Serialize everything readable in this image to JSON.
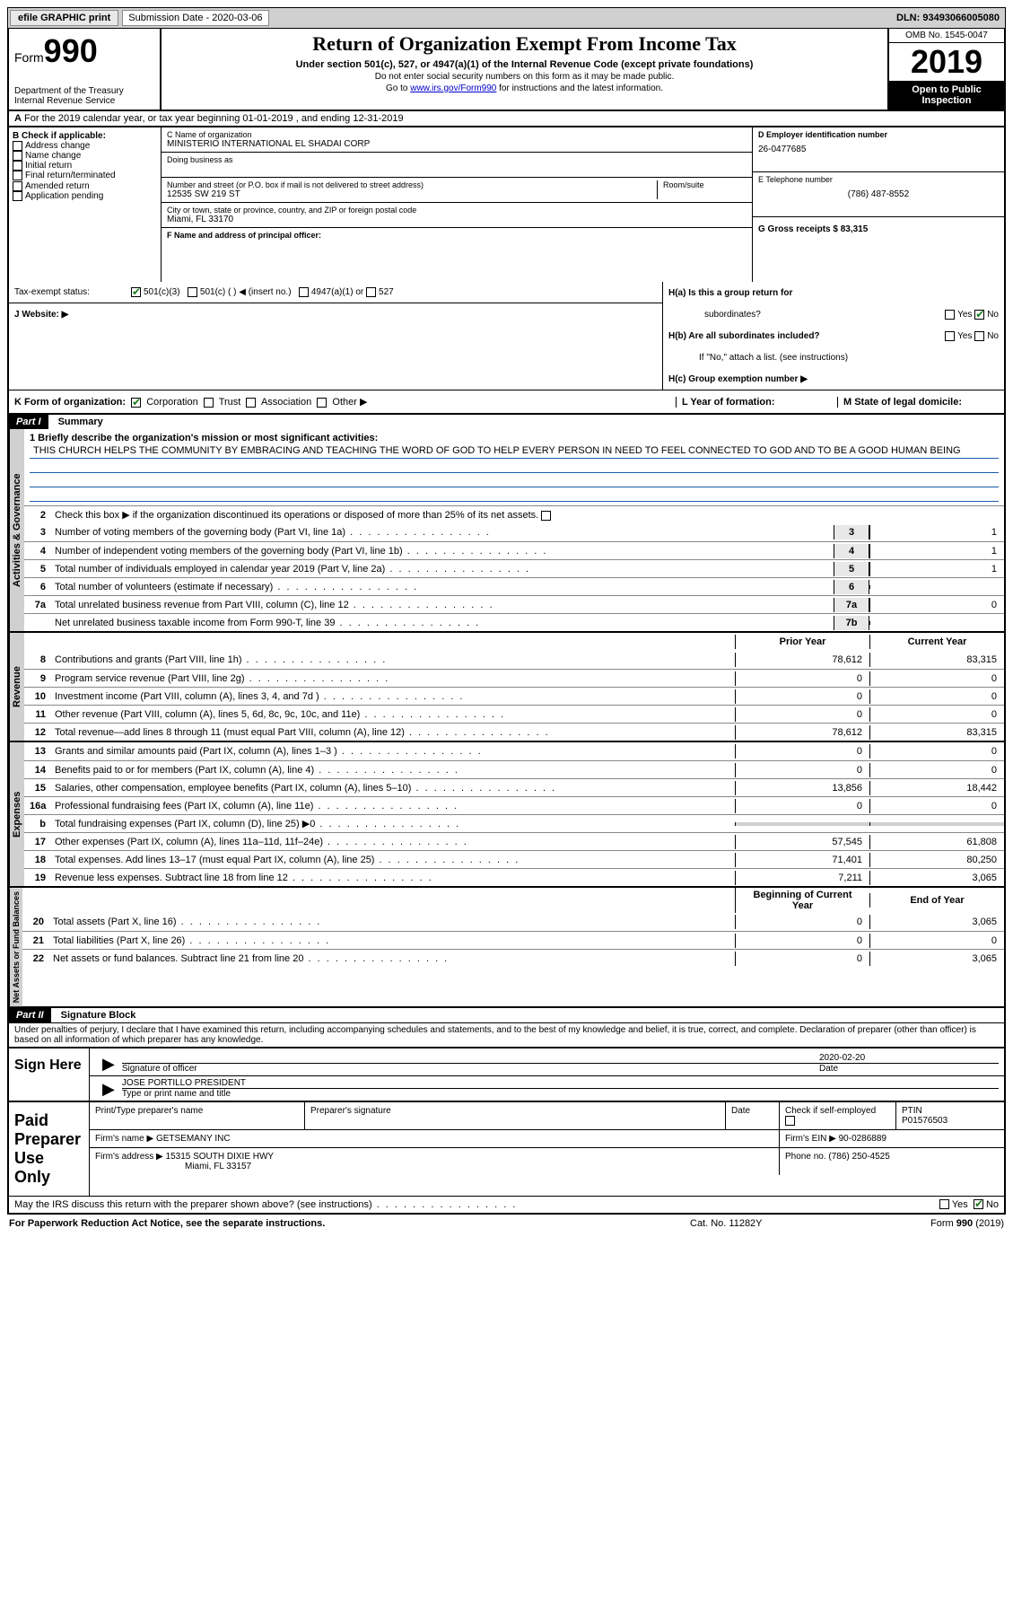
{
  "topbar": {
    "efile": "efile GRAPHIC print",
    "sub_label": "Submission Date - 2020-03-06",
    "dln": "DLN: 93493066005080"
  },
  "header": {
    "form_label": "Form",
    "form_num": "990",
    "dept": "Department of the Treasury",
    "irs": "Internal Revenue Service",
    "title": "Return of Organization Exempt From Income Tax",
    "subtitle": "Under section 501(c), 527, or 4947(a)(1) of the Internal Revenue Code (except private foundations)",
    "note1": "Do not enter social security numbers on this form as it may be made public.",
    "note2_pre": "Go to ",
    "note2_link": "www.irs.gov/Form990",
    "note2_post": " for instructions and the latest information.",
    "omb": "OMB No. 1545-0047",
    "year": "2019",
    "inspect1": "Open to Public",
    "inspect2": "Inspection"
  },
  "section_a": "For the 2019 calendar year, or tax year beginning 01-01-2019     , and ending 12-31-2019",
  "col_b": {
    "heading": "B Check if applicable:",
    "opts": [
      "Address change",
      "Name change",
      "Initial return",
      "Final return/terminated",
      "Amended return",
      "Application pending"
    ]
  },
  "col_c": {
    "name_label": "C Name of organization",
    "name": "MINISTERIO INTERNATIONAL EL SHADAI CORP",
    "dba_label": "Doing business as",
    "addr_label": "Number and street (or P.O. box if mail is not delivered to street address)",
    "room_label": "Room/suite",
    "addr": "12535 SW 219 ST",
    "city_label": "City or town, state or province, country, and ZIP or foreign postal code",
    "city": "Miami, FL  33170",
    "officer_label": "F  Name and address of principal officer:"
  },
  "col_d": {
    "ein_label": "D Employer identification number",
    "ein": "26-0477685",
    "tel_label": "E Telephone number",
    "tel": "(786) 487-8552",
    "gross_label": "G Gross receipts $ 83,315"
  },
  "h": {
    "a_label": "H(a)  Is this a group return for",
    "a_label2": "subordinates?",
    "b_label": "H(b)  Are all subordinates included?",
    "b_note": "If \"No,\" attach a list. (see instructions)",
    "c_label": "H(c)  Group exemption number ▶",
    "yes": "Yes",
    "no": "No"
  },
  "status": {
    "i_label": "Tax-exempt status:",
    "opt1": "501(c)(3)",
    "opt2": "501(c) (   ) ◀ (insert no.)",
    "opt3": "4947(a)(1) or",
    "opt4": "527",
    "j_label": "J   Website: ▶"
  },
  "k": {
    "label": "K Form of organization:",
    "corp": "Corporation",
    "trust": "Trust",
    "assoc": "Association",
    "other": "Other ▶",
    "l_label": "L Year of formation:",
    "m_label": "M State of legal domicile:"
  },
  "part1": {
    "bar": "Part I",
    "title": "Summary",
    "line1_label": "1  Briefly describe the organization's mission or most significant activities:",
    "mission": "THIS CHURCH HELPS THE COMMUNITY BY EMBRACING AND TEACHING THE WORD OF GOD TO HELP EVERY PERSON IN NEED TO FEEL CONNECTED TO GOD AND TO BE A GOOD HUMAN BEING",
    "line2": "Check this box ▶        if the organization discontinued its operations or disposed of more than 25% of its net assets.",
    "tabs": {
      "act": "Activities & Governance",
      "rev": "Revenue",
      "exp": "Expenses",
      "net": "Net Assets or Fund Balances"
    },
    "rows_top": [
      {
        "n": "3",
        "t": "Number of voting members of the governing body (Part VI, line 1a)",
        "box": "3",
        "v": "1"
      },
      {
        "n": "4",
        "t": "Number of independent voting members of the governing body (Part VI, line 1b)",
        "box": "4",
        "v": "1"
      },
      {
        "n": "5",
        "t": "Total number of individuals employed in calendar year 2019 (Part V, line 2a)",
        "box": "5",
        "v": "1"
      },
      {
        "n": "6",
        "t": "Total number of volunteers (estimate if necessary)",
        "box": "6",
        "v": ""
      },
      {
        "n": "7a",
        "t": "Total unrelated business revenue from Part VIII, column (C), line 12",
        "box": "7a",
        "v": "0"
      },
      {
        "n": "",
        "t": "Net unrelated business taxable income from Form 990-T, line 39",
        "box": "7b",
        "v": ""
      }
    ],
    "col_hdr_prior": "Prior Year",
    "col_hdr_curr": "Current Year",
    "rows_rev": [
      {
        "n": "8",
        "t": "Contributions and grants (Part VIII, line 1h)",
        "p": "78,612",
        "c": "83,315"
      },
      {
        "n": "9",
        "t": "Program service revenue (Part VIII, line 2g)",
        "p": "0",
        "c": "0"
      },
      {
        "n": "10",
        "t": "Investment income (Part VIII, column (A), lines 3, 4, and 7d )",
        "p": "0",
        "c": "0"
      },
      {
        "n": "11",
        "t": "Other revenue (Part VIII, column (A), lines 5, 6d, 8c, 9c, 10c, and 11e)",
        "p": "0",
        "c": "0"
      },
      {
        "n": "12",
        "t": "Total revenue—add lines 8 through 11 (must equal Part VIII, column (A), line 12)",
        "p": "78,612",
        "c": "83,315"
      }
    ],
    "rows_exp": [
      {
        "n": "13",
        "t": "Grants and similar amounts paid (Part IX, column (A), lines 1–3 )",
        "p": "0",
        "c": "0"
      },
      {
        "n": "14",
        "t": "Benefits paid to or for members (Part IX, column (A), line 4)",
        "p": "0",
        "c": "0"
      },
      {
        "n": "15",
        "t": "Salaries, other compensation, employee benefits (Part IX, column (A), lines 5–10)",
        "p": "13,856",
        "c": "18,442"
      },
      {
        "n": "16a",
        "t": "Professional fundraising fees (Part IX, column (A), line 11e)",
        "p": "0",
        "c": "0"
      },
      {
        "n": "b",
        "t": "Total fundraising expenses (Part IX, column (D), line 25) ▶0",
        "p": "",
        "c": "",
        "shade": true
      },
      {
        "n": "17",
        "t": "Other expenses (Part IX, column (A), lines 11a–11d, 11f–24e)",
        "p": "57,545",
        "c": "61,808"
      },
      {
        "n": "18",
        "t": "Total expenses. Add lines 13–17 (must equal Part IX, column (A), line 25)",
        "p": "71,401",
        "c": "80,250"
      },
      {
        "n": "19",
        "t": "Revenue less expenses. Subtract line 18 from line 12",
        "p": "7,211",
        "c": "3,065"
      }
    ],
    "col_hdr_beg": "Beginning of Current Year",
    "col_hdr_end": "End of Year",
    "rows_net": [
      {
        "n": "20",
        "t": "Total assets (Part X, line 16)",
        "p": "0",
        "c": "3,065"
      },
      {
        "n": "21",
        "t": "Total liabilities (Part X, line 26)",
        "p": "0",
        "c": "0"
      },
      {
        "n": "22",
        "t": "Net assets or fund balances. Subtract line 21 from line 20",
        "p": "0",
        "c": "3,065"
      }
    ]
  },
  "part2": {
    "bar": "Part II",
    "title": "Signature Block",
    "perjury": "Under penalties of perjury, I declare that I have examined this return, including accompanying schedules and statements, and to the best of my knowledge and belief, it is true, correct, and complete. Declaration of preparer (other than officer) is based on all information of which preparer has any knowledge.",
    "sign_here": "Sign Here",
    "sig_officer": "Signature of officer",
    "date_label": "Date",
    "date": "2020-02-20",
    "officer_name": "JOSE PORTILLO  PRESIDENT",
    "type_name": "Type or print name and title",
    "paid": "Paid Preparer Use Only",
    "prep_name_label": "Print/Type preparer's name",
    "prep_sig_label": "Preparer's signature",
    "check_if": "Check        if self-employed",
    "ptin_label": "PTIN",
    "ptin": "P01576503",
    "firm_name_label": "Firm's name     ▶",
    "firm_name": "GETSEMANY INC",
    "firm_ein_label": "Firm's EIN ▶",
    "firm_ein": "90-0286889",
    "firm_addr_label": "Firm's address ▶",
    "firm_addr1": "15315 SOUTH DIXIE HWY",
    "firm_addr2": "Miami, FL  33157",
    "phone_label": "Phone no.",
    "phone": "(786) 250-4525",
    "discuss": "May the IRS discuss this return with the preparer shown above? (see instructions)"
  },
  "footer": {
    "left": "For Paperwork Reduction Act Notice, see the separate instructions.",
    "mid": "Cat. No. 11282Y",
    "right": "Form 990 (2019)"
  }
}
